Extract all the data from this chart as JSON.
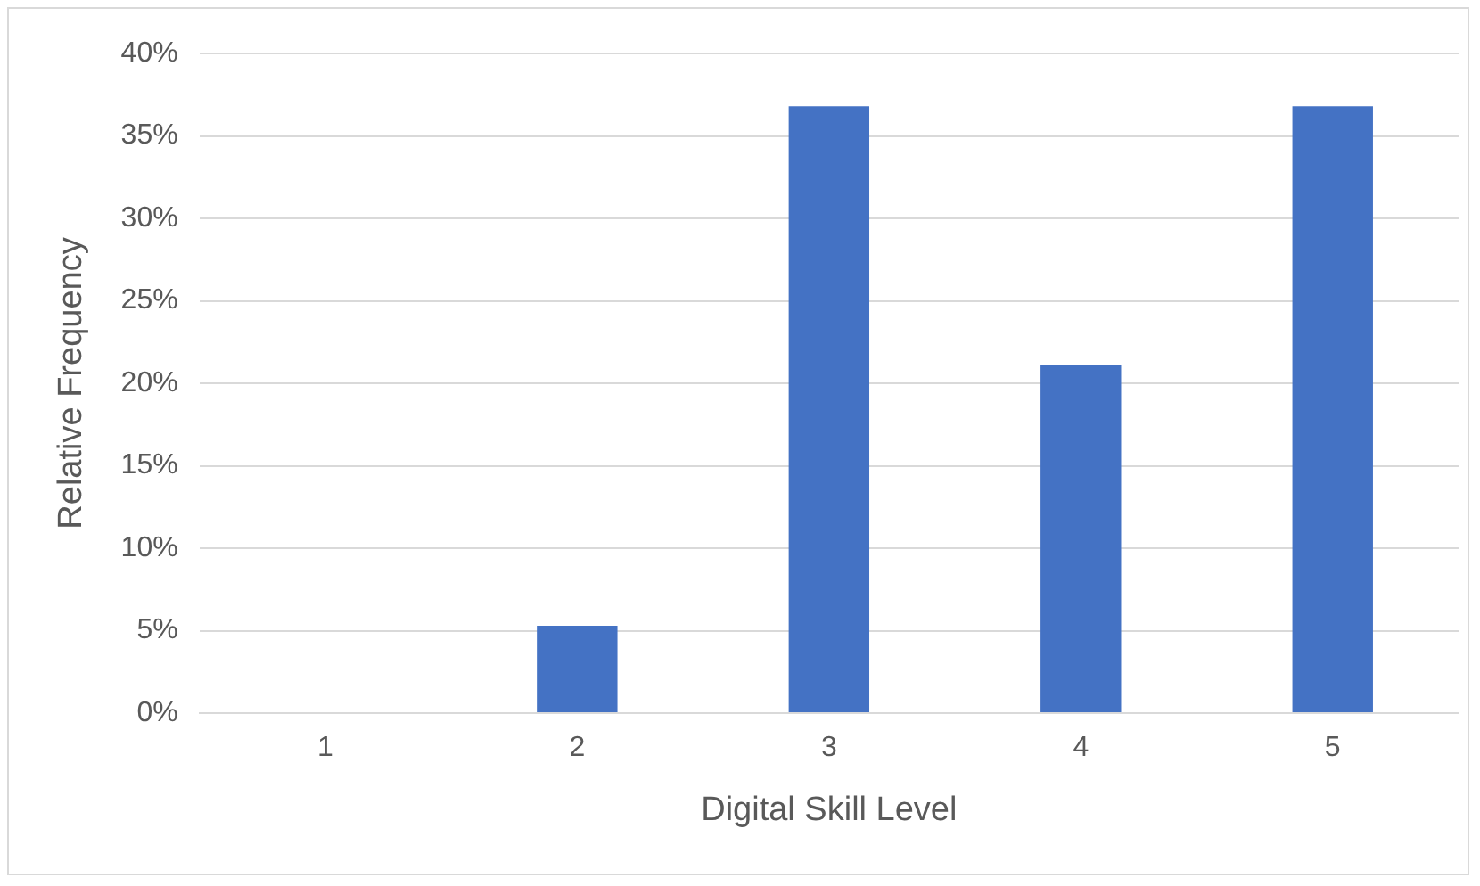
{
  "chart_data": {
    "type": "bar",
    "xlabel": "Digital Skill Level",
    "ylabel": "Relative Frequency",
    "categories": [
      "1",
      "2",
      "3",
      "4",
      "5"
    ],
    "values": [
      0,
      5.3,
      36.8,
      21.1,
      36.8
    ],
    "color": "#4472c4",
    "ylim": [
      0,
      40
    ],
    "yticks": [
      {
        "value": 0,
        "label": "0%"
      },
      {
        "value": 5,
        "label": "5%"
      },
      {
        "value": 10,
        "label": "10%"
      },
      {
        "value": 15,
        "label": "15%"
      },
      {
        "value": 20,
        "label": "20%"
      },
      {
        "value": 25,
        "label": "25%"
      },
      {
        "value": 30,
        "label": "30%"
      },
      {
        "value": 35,
        "label": "35%"
      },
      {
        "value": 40,
        "label": "40%"
      }
    ],
    "grid": "y"
  }
}
